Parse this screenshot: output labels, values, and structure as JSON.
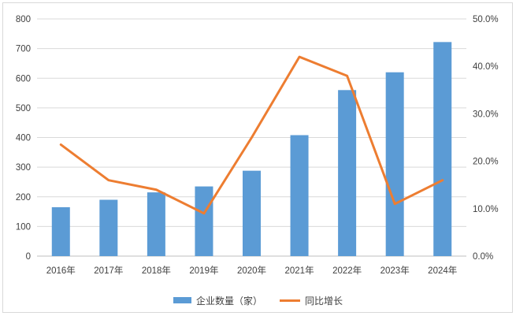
{
  "chart_data": {
    "type": "bar_line_combo",
    "title": "",
    "categories": [
      "2016年",
      "2017年",
      "2018年",
      "2019年",
      "2020年",
      "2021年",
      "2022年",
      "2023年",
      "2024年"
    ],
    "series": [
      {
        "name": "企业数量（家）",
        "type": "bar",
        "axis": "left",
        "color": "#5B9BD5",
        "values": [
          165,
          190,
          215,
          235,
          288,
          408,
          560,
          620,
          722
        ]
      },
      {
        "name": "同比增长",
        "type": "line",
        "axis": "right",
        "color": "#ED7D31",
        "unit": "%",
        "values": [
          23.5,
          16,
          14,
          9,
          25,
          42,
          38,
          11,
          16
        ]
      }
    ],
    "left_axis": {
      "min": 0,
      "max": 800,
      "tick_step": 100,
      "tick_labels": [
        "0",
        "100",
        "200",
        "300",
        "400",
        "500",
        "600",
        "700",
        "800"
      ]
    },
    "right_axis": {
      "min": 0,
      "max": 50,
      "tick_step": 10,
      "tick_labels": [
        "0.0%",
        "10.0%",
        "20.0%",
        "30.0%",
        "40.0%",
        "50.0%"
      ]
    },
    "grid": true,
    "legend_position": "bottom",
    "colors": {
      "gridline": "#d9d9d9",
      "axis_line": "#bfbfbf",
      "tick_text": "#404040",
      "frame_border": "#d9d9d9",
      "background": "#ffffff"
    }
  }
}
